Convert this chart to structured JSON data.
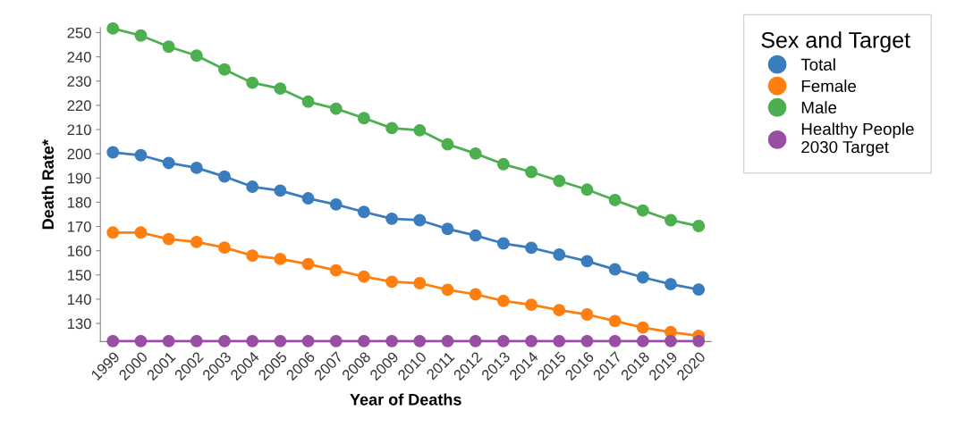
{
  "chart_data": {
    "type": "line",
    "xlabel": "Year of Deaths",
    "ylabel": "Death Rate*",
    "legend_title": "Sex and Target",
    "categories": [
      "1999",
      "2000",
      "2001",
      "2002",
      "2003",
      "2004",
      "2005",
      "2006",
      "2007",
      "2008",
      "2009",
      "2010",
      "2011",
      "2012",
      "2013",
      "2014",
      "2015",
      "2016",
      "2017",
      "2018",
      "2019",
      "2020"
    ],
    "series": [
      {
        "name": "Total",
        "color": "#3a7dbf",
        "values": [
          200.6,
          199.4,
          196.2,
          194.2,
          190.6,
          186.4,
          184.8,
          181.6,
          179.1,
          176.0,
          173.2,
          172.6,
          169.0,
          166.3,
          163.0,
          161.2,
          158.4,
          155.7,
          152.3,
          149.0,
          146.2,
          144.0
        ]
      },
      {
        "name": "Female",
        "color": "#ff7f0e",
        "values": [
          167.5,
          167.5,
          164.8,
          163.6,
          161.3,
          158.0,
          156.6,
          154.5,
          151.9,
          149.3,
          147.2,
          146.6,
          143.9,
          142.0,
          139.3,
          137.7,
          135.5,
          133.7,
          131.0,
          128.3,
          126.4,
          124.9
        ]
      },
      {
        "name": "Male",
        "color": "#4caf50",
        "values": [
          251.7,
          248.8,
          244.2,
          240.5,
          234.8,
          229.3,
          226.9,
          221.5,
          218.6,
          214.7,
          210.6,
          209.7,
          203.9,
          200.1,
          195.7,
          192.5,
          188.8,
          185.2,
          180.9,
          176.6,
          172.6,
          170.2
        ]
      },
      {
        "name": "Healthy People\n2030 Target",
        "color": "#984ea3",
        "values": [
          122.7,
          122.7,
          122.7,
          122.7,
          122.7,
          122.7,
          122.7,
          122.7,
          122.7,
          122.7,
          122.7,
          122.7,
          122.7,
          122.7,
          122.7,
          122.7,
          122.7,
          122.7,
          122.7,
          122.7,
          122.7,
          122.7
        ]
      }
    ],
    "ylim": [
      122.5,
      252
    ],
    "yticks": [
      130,
      140,
      150,
      160,
      170,
      180,
      190,
      200,
      210,
      220,
      230,
      240,
      250
    ],
    "grid": false,
    "legend": "top right",
    "marker": "circle",
    "line_style": "solid"
  }
}
